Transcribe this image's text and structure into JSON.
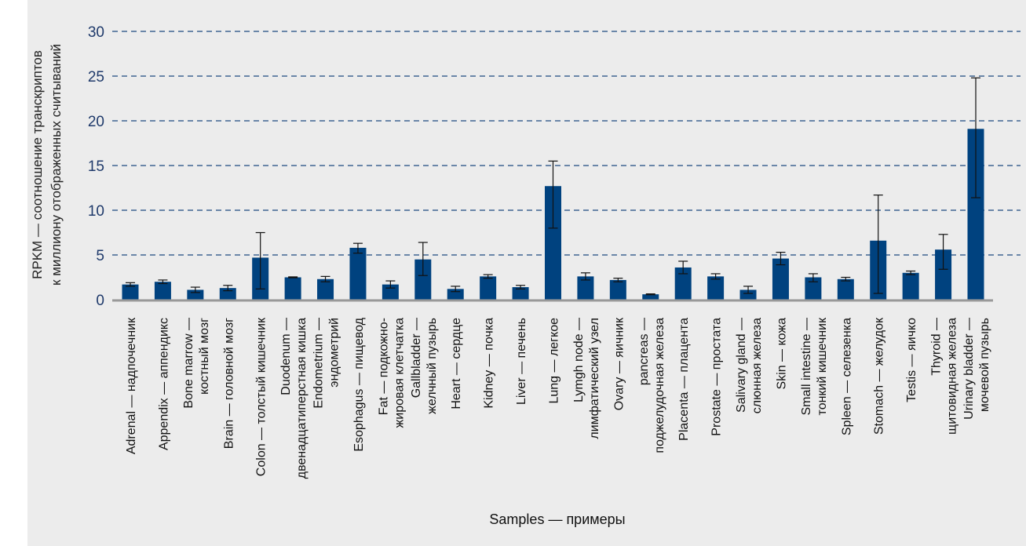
{
  "chart_data": {
    "type": "bar",
    "title": "",
    "ylabel": [
      "RPKM — соотношение транскриптов",
      "к миллиону отображенных считываний"
    ],
    "xlabel": "Samples — примеры",
    "ylim": [
      0,
      30
    ],
    "yticks": [
      0,
      5,
      10,
      15,
      20,
      25,
      30
    ],
    "grid": true,
    "bar_color": "#00427f",
    "categories": [
      [
        "Adrenal — надпочечник"
      ],
      [
        "Appendix — аппендикс"
      ],
      [
        "Bone marrow —",
        "костный мозг"
      ],
      [
        "Brain — головной мозг"
      ],
      [
        "Colon — толстый кишечник"
      ],
      [
        "Duodenum —",
        "двенадцатиперстная кишка"
      ],
      [
        "Endometrium —",
        "эндометрий"
      ],
      [
        "Esophagus — пищевод"
      ],
      [
        "Fat — подкожно-",
        "жировая клетчатка"
      ],
      [
        "Gallbladder —",
        "желчный пузырь"
      ],
      [
        "Heart — сердце"
      ],
      [
        "Kidney — почка"
      ],
      [
        "Liver — печень"
      ],
      [
        "Lung — легкое"
      ],
      [
        "Lymgh node —",
        "лимфатический узел"
      ],
      [
        "Ovary — яичник"
      ],
      [
        "pancreas —",
        "поджелудочная железа"
      ],
      [
        "Placenta — плацента"
      ],
      [
        "Prostate — простата"
      ],
      [
        "Salivary gland —",
        "слюнная железа"
      ],
      [
        "Skin — кожа"
      ],
      [
        "Small intestine —",
        "тонкий кишечник"
      ],
      [
        "Spleen — селезенка"
      ],
      [
        "Stomach — желудок"
      ],
      [
        "Testis — яичко"
      ],
      [
        "Thyroid —",
        "щитовидная железа"
      ],
      [
        "Urinary bladder —",
        "мочевой пузырь"
      ]
    ],
    "values": [
      1.7,
      2.0,
      1.1,
      1.3,
      4.7,
      2.5,
      2.3,
      5.8,
      1.7,
      4.5,
      1.2,
      2.6,
      1.4,
      12.7,
      2.6,
      2.2,
      0.6,
      3.6,
      2.6,
      1.1,
      4.6,
      2.5,
      2.3,
      6.6,
      3.0,
      5.6,
      19.1
    ],
    "err_low": [
      1.5,
      1.8,
      0.8,
      1.0,
      1.2,
      2.45,
      2.0,
      5.2,
      1.3,
      2.7,
      0.9,
      2.4,
      1.2,
      8.0,
      2.2,
      2.0,
      0.55,
      2.9,
      2.3,
      0.7,
      3.9,
      2.0,
      2.1,
      0.7,
      2.8,
      3.4,
      11.4
    ],
    "err_high": [
      1.9,
      2.2,
      1.4,
      1.6,
      7.5,
      2.55,
      2.6,
      6.3,
      2.1,
      6.4,
      1.5,
      2.8,
      1.6,
      15.5,
      3.0,
      2.4,
      0.65,
      4.3,
      2.9,
      1.5,
      5.3,
      2.9,
      2.5,
      11.7,
      3.2,
      7.3,
      24.8
    ]
  }
}
